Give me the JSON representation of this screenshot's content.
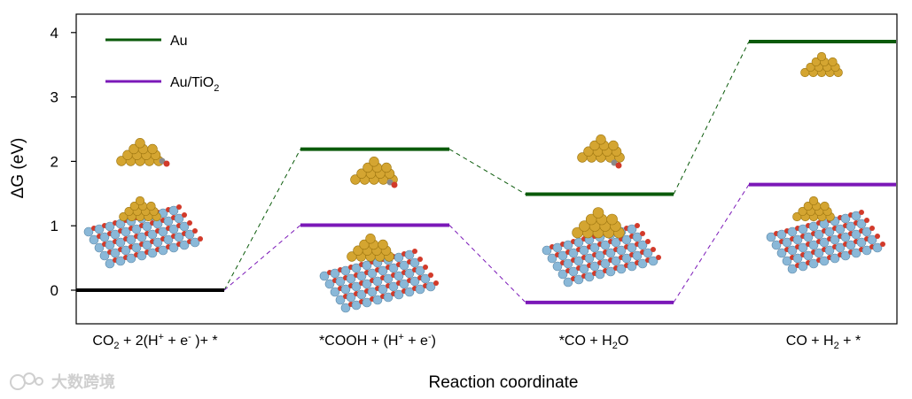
{
  "chart_data": {
    "type": "line",
    "ylabel": "ΔG (eV)",
    "xlabel": "Reaction coordinate",
    "ylim": [
      -0.45,
      4.3
    ],
    "yticks": [
      "0",
      "1",
      "2",
      "3",
      "4"
    ],
    "ytick_values": [
      0,
      1,
      2,
      3,
      4
    ],
    "states": [
      {
        "main": "CO",
        "sub": "2",
        "rest": " + 2(H",
        "sup1": "+",
        "mid": " + e",
        "sup2": "-",
        "tail": " )+ *"
      },
      {
        "main": "*COOH + (H",
        "sup1": "+",
        "mid": " + e",
        "sup2": "-",
        "tail": ")"
      },
      {
        "main": "*CO + H",
        "sub": "2",
        "rest": "O"
      },
      {
        "main": "CO + H",
        "sub": "2",
        "rest": " + *"
      }
    ],
    "initial": {
      "name": "",
      "value": 0,
      "color": "#000000"
    },
    "series": [
      {
        "name": "Au",
        "color": "#0a5a0a",
        "values": [
          0,
          2.19,
          1.49,
          3.86
        ]
      },
      {
        "name": "Au/TiO",
        "name_sub": "2",
        "color": "#7b18b8",
        "values": [
          0,
          1.01,
          -0.19,
          1.64
        ]
      }
    ],
    "grid": false,
    "legend_position": "top-left"
  },
  "watermark": "大数跨境"
}
